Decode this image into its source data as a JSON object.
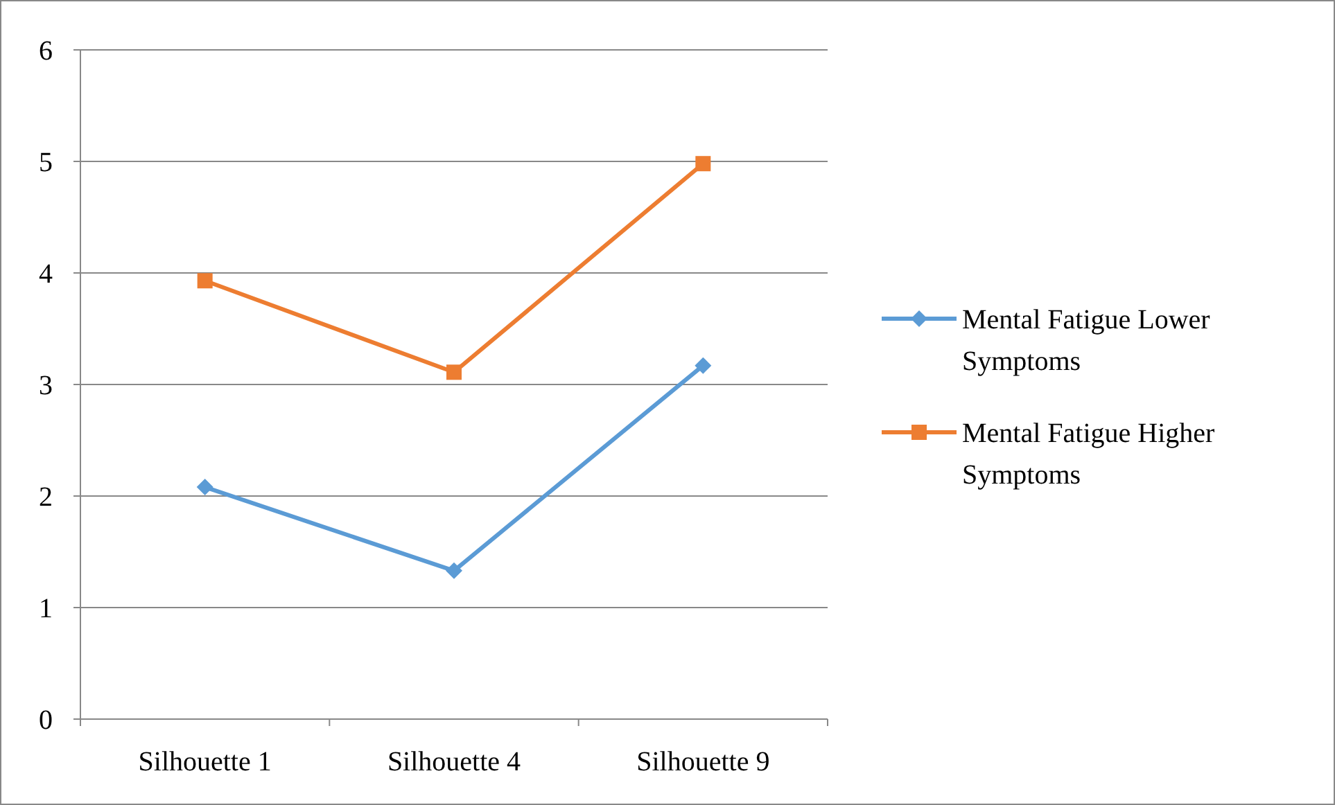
{
  "chart_data": {
    "type": "line",
    "categories": [
      "Silhouette 1",
      "Silhouette 4",
      "Silhouette 9"
    ],
    "series": [
      {
        "name": "Mental Fatigue Lower Symptoms",
        "color": "#5b9bd5",
        "marker": "diamond",
        "values": [
          2.08,
          1.33,
          3.17
        ]
      },
      {
        "name": "Mental Fatigue Higher Symptoms",
        "color": "#ed7d31",
        "marker": "square",
        "values": [
          3.93,
          3.11,
          4.98
        ]
      }
    ],
    "ylim": [
      0,
      6
    ],
    "yticks": [
      0,
      1,
      2,
      3,
      4,
      5,
      6
    ],
    "grid": "y",
    "legend": "right"
  }
}
